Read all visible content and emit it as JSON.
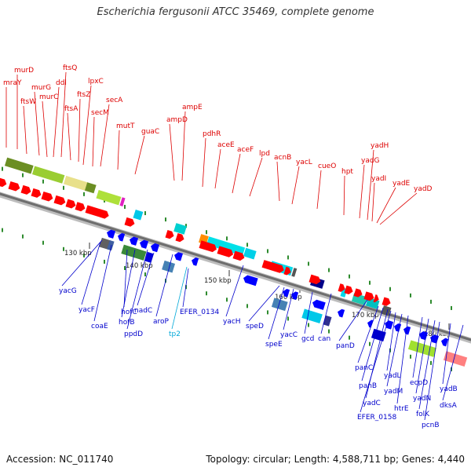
{
  "title": "Escherichia fergusonii ATCC 35469, complete genome",
  "accession": "Accession: NC_011740",
  "summary": "Topology: circular; Length: 4,588,711 bp; Genes: 4,440",
  "colors": {
    "forward_label": "#dd0000",
    "reverse_label": "#0000cc",
    "highlight_label": "#00a8d8",
    "backbone": "#8a8a8a",
    "forward_arrow": "#ff0000",
    "reverse_arrow": "#0000ff"
  },
  "ticks": [
    "130 kbp",
    "140 kbp",
    "150 kbp",
    "160 kbp",
    "170 kbp",
    "180 kbp"
  ],
  "forward_genes": [
    "mraY",
    "murD",
    "ftsW",
    "murG",
    "murC",
    "ddl",
    "ftsQ",
    "ftsA",
    "ftsZ",
    "lpxC",
    "secM",
    "secA",
    "mutT",
    "guaC",
    "ampD",
    "ampE",
    "pdhR",
    "aceE",
    "aceF",
    "lpd",
    "acnB",
    "yacL",
    "cueO",
    "hpt",
    "yadG",
    "yadH",
    "yadI",
    "yadE",
    "yadD"
  ],
  "reverse_genes": [
    "yacG",
    "yacF",
    "coaE",
    "hofC",
    "hofB",
    "ppdD",
    "nadC",
    "aroP",
    "tp2",
    "EFER_0134",
    "yacH",
    "speD",
    "speE",
    "yacC",
    "gcd",
    "can",
    "panD",
    "panC",
    "panB",
    "yadC",
    "EFER_0158",
    "yadL",
    "yadM",
    "htrE",
    "ecpD",
    "yadN",
    "folK",
    "pcnB",
    "yadB",
    "dksA"
  ]
}
